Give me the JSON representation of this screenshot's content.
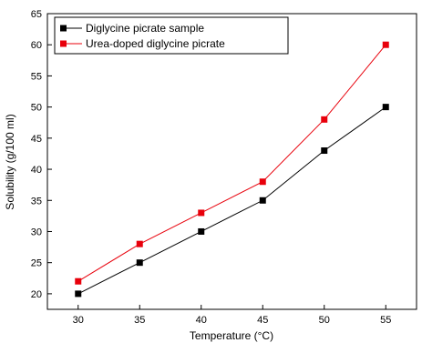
{
  "chart_data": {
    "type": "line",
    "title": "",
    "xlabel": "Temperature (°C)",
    "ylabel": "Solubility (g/100 ml)",
    "x": [
      30,
      35,
      40,
      45,
      50,
      55
    ],
    "xlim": [
      27.5,
      57.5
    ],
    "ylim": [
      17.5,
      65
    ],
    "xticks": [
      "30",
      "35",
      "40",
      "45",
      "50",
      "55"
    ],
    "yticks": [
      "20",
      "25",
      "30",
      "35",
      "40",
      "45",
      "50",
      "55",
      "60",
      "65"
    ],
    "grid": false,
    "legend_position": "top-left",
    "series": [
      {
        "name": "Diglycine picrate sample",
        "values": [
          20,
          25,
          30,
          35,
          43,
          50
        ],
        "color": "#000000"
      },
      {
        "name": "Urea-doped diglycine picrate",
        "values": [
          22,
          28,
          33,
          38,
          48,
          60
        ],
        "color": "#e8000b"
      }
    ]
  }
}
